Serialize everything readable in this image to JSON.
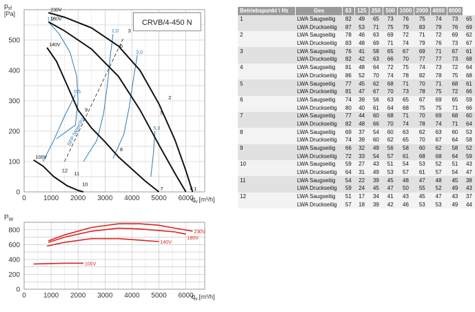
{
  "chart_data": [
    {
      "type": "line",
      "title": "CRVB/4-450 N",
      "ylabel_main": "p",
      "ylabel_sub": "sf",
      "yunit": "[Pa]",
      "xlabel": "q",
      "xlabel_sub": "v",
      "xunit": "[m³/h]",
      "xlim": [
        0,
        6700
      ],
      "ylim": [
        0,
        600
      ],
      "xticks": [
        "0",
        "1000",
        "2000",
        "3000",
        "4000",
        "5000",
        "6000"
      ],
      "yticks": [
        "0",
        "100",
        "200",
        "300",
        "400",
        "500"
      ],
      "grid": true,
      "series": [
        {
          "name": "230V",
          "color": "#111111",
          "x": [
            900,
            1500,
            2500,
            3500,
            4300,
            5000,
            5600,
            6000,
            6250
          ],
          "y": [
            590,
            575,
            540,
            480,
            400,
            290,
            170,
            70,
            0
          ]
        },
        {
          "name": "180V",
          "color": "#111111",
          "x": [
            900,
            1500,
            2500,
            3500,
            4300,
            5000,
            5600,
            6000
          ],
          "y": [
            560,
            530,
            470,
            380,
            270,
            155,
            60,
            0
          ]
        },
        {
          "name": "140V",
          "color": "#111111",
          "x": [
            850,
            1200,
            1600,
            2000,
            2500,
            3000,
            3500,
            4000,
            4500,
            5000
          ],
          "y": [
            475,
            430,
            350,
            270,
            210,
            165,
            115,
            75,
            35,
            0
          ]
        },
        {
          "name": "100V",
          "color": "#111111",
          "x": [
            350,
            700,
            1100,
            1600,
            2000,
            2200
          ],
          "y": [
            105,
            85,
            50,
            20,
            5,
            0
          ]
        }
      ],
      "sfp_label": "SFP [W/m³/h]",
      "sfp_curves": [
        {
          "name": "1,0",
          "color": "#2a7ab5",
          "x": [
            1200,
            1900,
            2000,
            1950,
            1700,
            1300,
            900
          ],
          "y": [
            175,
            220,
            300,
            380,
            460,
            520,
            560
          ]
        },
        {
          "name": "2,0",
          "color": "#2a7ab5",
          "x": [
            2200,
            2700,
            2950,
            3100,
            3200,
            3300
          ],
          "y": [
            100,
            170,
            260,
            360,
            450,
            520
          ]
        },
        {
          "name": "3,0",
          "color": "#2a7ab5",
          "x": [
            3300,
            3700,
            3900,
            4050,
            4200
          ],
          "y": [
            110,
            190,
            280,
            370,
            450
          ]
        },
        {
          "name": "5,0",
          "color": "#2a7ab5",
          "x": [
            4700,
            4800,
            4850
          ],
          "y": [
            50,
            130,
            200
          ]
        },
        {
          "name": "0,5",
          "color": "#2a7ab5",
          "x": [
            700,
            1100,
            1500,
            1900
          ],
          "y": [
            100,
            170,
            250,
            320
          ]
        }
      ],
      "operating_point_line": {
        "x": [
          1500,
          3700
        ],
        "y": [
          100,
          510
        ]
      },
      "operating_points": [
        {
          "label": "1",
          "x": 6250,
          "y": 0
        },
        {
          "label": "2",
          "x": 5300,
          "y": 300
        },
        {
          "label": "3",
          "x": 3800,
          "y": 520
        },
        {
          "label": "4",
          "x": 6100,
          "y": 0
        },
        {
          "label": "5",
          "x": 5000,
          "y": 250
        },
        {
          "label": "6",
          "x": 3500,
          "y": 470
        },
        {
          "label": "7",
          "x": 5000,
          "y": 0
        },
        {
          "label": "8",
          "x": 3500,
          "y": 130
        },
        {
          "label": "9",
          "x": 2200,
          "y": 260
        },
        {
          "label": "10",
          "x": 2100,
          "y": 15
        },
        {
          "label": "11",
          "x": 1800,
          "y": 50
        },
        {
          "label": "12",
          "x": 1350,
          "y": 60
        }
      ]
    },
    {
      "type": "line",
      "ylabel_main": "P",
      "ylabel_sub": "W",
      "xlabel": "q",
      "xlabel_sub": "v",
      "xunit": "[m³/h]",
      "xlim": [
        0,
        6700
      ],
      "ylim": [
        0,
        900
      ],
      "xticks": [
        "0",
        "1000",
        "2000",
        "3000",
        "4000",
        "5000",
        "6000"
      ],
      "yticks": [
        "0",
        "200",
        "400",
        "600",
        "800"
      ],
      "grid": true,
      "series": [
        {
          "name": "230V",
          "color": "#dd2222",
          "x": [
            900,
            1500,
            2500,
            3500,
            4300,
            5000,
            5600,
            6250
          ],
          "y": [
            650,
            730,
            830,
            880,
            880,
            860,
            820,
            780
          ]
        },
        {
          "name": "180V",
          "color": "#dd2222",
          "x": [
            900,
            1500,
            2500,
            3500,
            4300,
            5000,
            5600,
            6000
          ],
          "y": [
            630,
            700,
            780,
            820,
            810,
            790,
            770,
            740
          ]
        },
        {
          "name": "140V",
          "color": "#dd2222",
          "x": [
            850,
            1500,
            2500,
            3500,
            4300,
            5000
          ],
          "y": [
            580,
            630,
            680,
            680,
            660,
            640
          ]
        },
        {
          "name": "100V",
          "color": "#dd2222",
          "x": [
            350,
            1000,
            1600,
            2200
          ],
          "y": [
            340,
            345,
            350,
            350
          ]
        }
      ]
    }
  ],
  "table": {
    "headers": [
      "Betriebspunkt \\ Hz",
      "Ges",
      "63",
      "125",
      "250",
      "500",
      "1000",
      "2000",
      "4000",
      "8000"
    ],
    "rows": [
      {
        "point": "1",
        "label": "LWA Saugseitig",
        "values": [
          "82",
          "49",
          "65",
          "73",
          "76",
          "75",
          "74",
          "73",
          "65"
        ]
      },
      {
        "point": "",
        "label": "LWA Druckseitig",
        "values": [
          "87",
          "53",
          "71",
          "75",
          "79",
          "83",
          "79",
          "76",
          "69"
        ]
      },
      {
        "point": "2",
        "label": "LWA Saugseitig",
        "values": [
          "78",
          "46",
          "63",
          "69",
          "72",
          "71",
          "72",
          "69",
          "62"
        ]
      },
      {
        "point": "",
        "label": "LWA Druckseitig",
        "values": [
          "83",
          "48",
          "69",
          "71",
          "74",
          "79",
          "76",
          "73",
          "67"
        ]
      },
      {
        "point": "3",
        "label": "LWA Saugseitig",
        "values": [
          "76",
          "41",
          "58",
          "65",
          "67",
          "69",
          "71",
          "67",
          "61"
        ]
      },
      {
        "point": "",
        "label": "LWA Druckseitig",
        "values": [
          "82",
          "42",
          "63",
          "66",
          "70",
          "77",
          "77",
          "73",
          "68"
        ]
      },
      {
        "point": "4",
        "label": "LWA Saugseitig",
        "values": [
          "81",
          "48",
          "64",
          "72",
          "75",
          "74",
          "73",
          "72",
          "64"
        ]
      },
      {
        "point": "",
        "label": "LWA Druckseitig",
        "values": [
          "86",
          "52",
          "70",
          "74",
          "78",
          "82",
          "78",
          "75",
          "68"
        ]
      },
      {
        "point": "5",
        "label": "LWA Saugseitig",
        "values": [
          "77",
          "45",
          "62",
          "68",
          "71",
          "70",
          "71",
          "68",
          "61"
        ]
      },
      {
        "point": "",
        "label": "LWA Druckseitig",
        "values": [
          "81",
          "47",
          "67",
          "70",
          "73",
          "78",
          "75",
          "72",
          "66"
        ]
      },
      {
        "point": "6",
        "label": "LWA Saugseitig",
        "values": [
          "74",
          "39",
          "56",
          "63",
          "65",
          "67",
          "69",
          "65",
          "59"
        ]
      },
      {
        "point": "",
        "label": "LWA Druckseitig",
        "values": [
          "80",
          "40",
          "61",
          "64",
          "68",
          "75",
          "75",
          "71",
          "66"
        ]
      },
      {
        "point": "7",
        "label": "LWA Saugseitig",
        "values": [
          "77",
          "44",
          "60",
          "68",
          "71",
          "70",
          "69",
          "68",
          "60"
        ]
      },
      {
        "point": "",
        "label": "LWA Druckseitig",
        "values": [
          "82",
          "48",
          "66",
          "70",
          "74",
          "78",
          "74",
          "71",
          "64"
        ]
      },
      {
        "point": "8",
        "label": "LWA Saugseitig",
        "values": [
          "69",
          "37",
          "54",
          "60",
          "63",
          "62",
          "63",
          "60",
          "53"
        ]
      },
      {
        "point": "",
        "label": "LWA Druckseitig",
        "values": [
          "74",
          "39",
          "60",
          "62",
          "65",
          "70",
          "67",
          "64",
          "58"
        ]
      },
      {
        "point": "9",
        "label": "LWA Saugseitig",
        "values": [
          "66",
          "32",
          "49",
          "56",
          "58",
          "60",
          "62",
          "58",
          "52"
        ]
      },
      {
        "point": "",
        "label": "LWA Druckseitig",
        "values": [
          "72",
          "33",
          "54",
          "57",
          "61",
          "68",
          "68",
          "64",
          "59"
        ]
      },
      {
        "point": "10",
        "label": "LWA Saugseitig",
        "values": [
          "59",
          "27",
          "43",
          "51",
          "54",
          "53",
          "52",
          "51",
          "43"
        ]
      },
      {
        "point": "",
        "label": "LWA Druckseitig",
        "values": [
          "64",
          "31",
          "49",
          "53",
          "57",
          "61",
          "57",
          "54",
          "47"
        ]
      },
      {
        "point": "11",
        "label": "LWA Saugseitig",
        "values": [
          "54",
          "22",
          "39",
          "45",
          "48",
          "47",
          "48",
          "45",
          "38"
        ]
      },
      {
        "point": "",
        "label": "LWA Druckseitig",
        "values": [
          "59",
          "24",
          "45",
          "47",
          "50",
          "55",
          "52",
          "49",
          "43"
        ]
      },
      {
        "point": "12",
        "label": "LWA Saugseitig",
        "values": [
          "51",
          "17",
          "34",
          "41",
          "43",
          "45",
          "47",
          "43",
          "37"
        ]
      },
      {
        "point": "",
        "label": "LWA Druckseitig",
        "values": [
          "57",
          "18",
          "39",
          "42",
          "46",
          "53",
          "53",
          "49",
          "44"
        ]
      }
    ]
  }
}
